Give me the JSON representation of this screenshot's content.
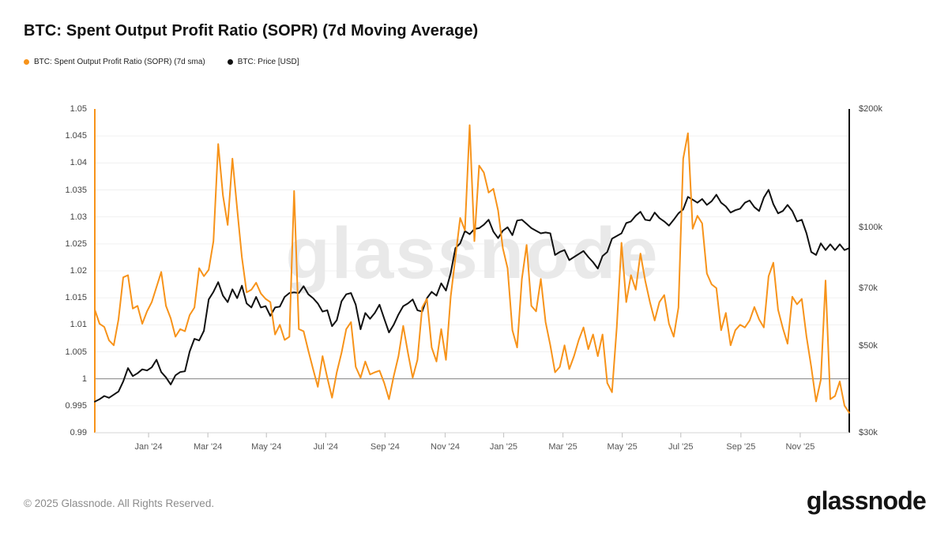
{
  "header": {
    "title": "BTC: Spent Output Profit Ratio (SOPR) (7d Moving Average)"
  },
  "watermark": "glassnode",
  "footer": {
    "copyright": "© 2025 Glassnode. All Rights Reserved.",
    "logo": "glassnode"
  },
  "colors": {
    "sopr_line": "#f7931a",
    "price_line": "#111111",
    "grid": "#f0f0f0",
    "baseline": "#8c8c8c",
    "axis_bottom": "#dddddd",
    "tick": "#c8c8c8",
    "watermark": "#e9e9e9"
  },
  "chart_data": {
    "type": "line",
    "title": "BTC: Spent Output Profit Ratio (SOPR) (7d Moving Average)",
    "x_start": "2023-11-06",
    "x_end": "2025-12-21",
    "grid": true,
    "baseline_value": 1.0,
    "x_ticks": [
      {
        "label": "Jan '24",
        "pos": 0.0713
      },
      {
        "label": "Mar '24",
        "pos": 0.1499
      },
      {
        "label": "May '24",
        "pos": 0.2275
      },
      {
        "label": "Jul '24",
        "pos": 0.3061
      },
      {
        "label": "Sep '24",
        "pos": 0.3847
      },
      {
        "label": "Nov '24",
        "pos": 0.4644
      },
      {
        "label": "Jan '25",
        "pos": 0.5419
      },
      {
        "label": "Mar '25",
        "pos": 0.6205
      },
      {
        "label": "May '25",
        "pos": 0.6991
      },
      {
        "label": "Jul '25",
        "pos": 0.7767
      },
      {
        "label": "Sep '25",
        "pos": 0.8564
      },
      {
        "label": "Nov '25",
        "pos": 0.935
      }
    ],
    "y_left": {
      "scale": "linear",
      "min": 0.99,
      "max": 1.05,
      "ticks": [
        "1.05",
        "1.045",
        "1.04",
        "1.035",
        "1.03",
        "1.025",
        "1.02",
        "1.015",
        "1.01",
        "1.005",
        "1",
        "0.995",
        "0.99"
      ]
    },
    "y_right": {
      "scale": "log",
      "min": 30000,
      "max": 200000,
      "ticks": [
        {
          "label": "$200k",
          "value": 200000
        },
        {
          "label": "$100k",
          "value": 100000
        },
        {
          "label": "$70k",
          "value": 70000
        },
        {
          "label": "$50k",
          "value": 50000
        },
        {
          "label": "$30k",
          "value": 30000
        }
      ]
    },
    "series": [
      {
        "name": "BTC: Spent Output Profit Ratio (SOPR) (7d sma)",
        "color": "#f7931a",
        "axis": "left",
        "values": [
          1.0128,
          1.0102,
          1.0096,
          1.0071,
          1.0062,
          1.011,
          1.0188,
          1.0192,
          1.013,
          1.0135,
          1.0102,
          1.0125,
          1.0142,
          1.017,
          1.0198,
          1.0135,
          1.0112,
          1.0078,
          1.0092,
          1.0088,
          1.0118,
          1.0132,
          1.0205,
          1.019,
          1.0202,
          1.0255,
          1.0435,
          1.034,
          1.0285,
          1.0408,
          1.0315,
          1.0225,
          1.016,
          1.0165,
          1.0178,
          1.0158,
          1.0148,
          1.0142,
          1.0082,
          1.01,
          1.0072,
          1.0078,
          1.0348,
          1.0092,
          1.0088,
          1.0052,
          1.0018,
          0.9985,
          1.0042,
          1.0002,
          0.9965,
          1.0012,
          1.0048,
          1.0092,
          1.0105,
          1.0022,
          1.0002,
          1.0032,
          1.0008,
          1.0012,
          1.0015,
          0.9992,
          0.9962,
          1.0005,
          1.0042,
          1.0098,
          1.0048,
          1.0002,
          1.0035,
          1.0132,
          1.0148,
          1.0058,
          1.0032,
          1.0092,
          1.0035,
          1.0152,
          1.0225,
          1.0298,
          1.0275,
          1.047,
          1.0255,
          1.0395,
          1.0382,
          1.0345,
          1.0352,
          1.0312,
          1.0242,
          1.0205,
          1.009,
          1.0058,
          1.0185,
          1.0248,
          1.0135,
          1.0125,
          1.0185,
          1.0105,
          1.0062,
          1.0012,
          1.0022,
          1.0062,
          1.0018,
          1.0042,
          1.0072,
          1.0095,
          1.0055,
          1.0082,
          1.0042,
          1.0082,
          0.9992,
          0.9975,
          1.0095,
          1.0252,
          1.0142,
          1.0192,
          1.0165,
          1.0232,
          1.0182,
          1.0142,
          1.0108,
          1.0142,
          1.0155,
          1.0102,
          1.0078,
          1.0132,
          1.0408,
          1.0455,
          1.0278,
          1.0302,
          1.0288,
          1.0195,
          1.0175,
          1.0168,
          1.009,
          1.0122,
          1.0062,
          1.009,
          1.01,
          1.0095,
          1.0108,
          1.0133,
          1.011,
          1.0095,
          1.019,
          1.0215,
          1.0128,
          1.0094,
          1.0065,
          1.0152,
          1.0138,
          1.0148,
          1.0078,
          1.0022,
          0.9958,
          0.9998,
          1.0182,
          0.9962,
          0.9968,
          0.9995,
          0.995,
          0.9937
        ]
      },
      {
        "name": "BTC: Price [USD]",
        "color": "#111111",
        "axis": "right",
        "unit": "USD",
        "values": [
          36000,
          36500,
          37200,
          36800,
          37500,
          38200,
          40500,
          43800,
          41800,
          42500,
          43500,
          43200,
          44000,
          46000,
          42800,
          41500,
          39800,
          42000,
          42800,
          43000,
          48300,
          52000,
          51500,
          54500,
          65500,
          68500,
          72500,
          67000,
          64500,
          69500,
          66000,
          71000,
          64000,
          62500,
          66500,
          62500,
          63000,
          59500,
          62500,
          62800,
          66500,
          68000,
          68300,
          68000,
          70800,
          67500,
          66000,
          64000,
          61000,
          61500,
          56000,
          58000,
          64800,
          67500,
          68000,
          63500,
          55000,
          60500,
          58500,
          60500,
          63500,
          58500,
          54000,
          56500,
          60000,
          63000,
          64000,
          65500,
          61500,
          61000,
          66000,
          68500,
          67000,
          72000,
          69000,
          76500,
          88500,
          91000,
          97800,
          96000,
          99000,
          99500,
          101500,
          104500,
          97500,
          93800,
          98000,
          100000,
          95500,
          104000,
          104500,
          102000,
          99500,
          98000,
          96500,
          97000,
          96500,
          85000,
          86500,
          87500,
          82500,
          84000,
          85500,
          87000,
          84000,
          81500,
          78500,
          84500,
          86500,
          93500,
          95000,
          96500,
          102500,
          103500,
          107000,
          109500,
          104500,
          104000,
          109000,
          105500,
          103500,
          101000,
          104500,
          108500,
          111000,
          119500,
          117500,
          115500,
          118000,
          114000,
          116500,
          121000,
          115500,
          113000,
          109000,
          110500,
          111500,
          115500,
          117000,
          112500,
          110000,
          119000,
          124500,
          114500,
          108500,
          110000,
          114000,
          110000,
          103500,
          104500,
          96500,
          86500,
          85000,
          91000,
          87500,
          90500,
          87500,
          90500,
          87500,
          88500
        ]
      }
    ],
    "legend_position": "top-left"
  }
}
